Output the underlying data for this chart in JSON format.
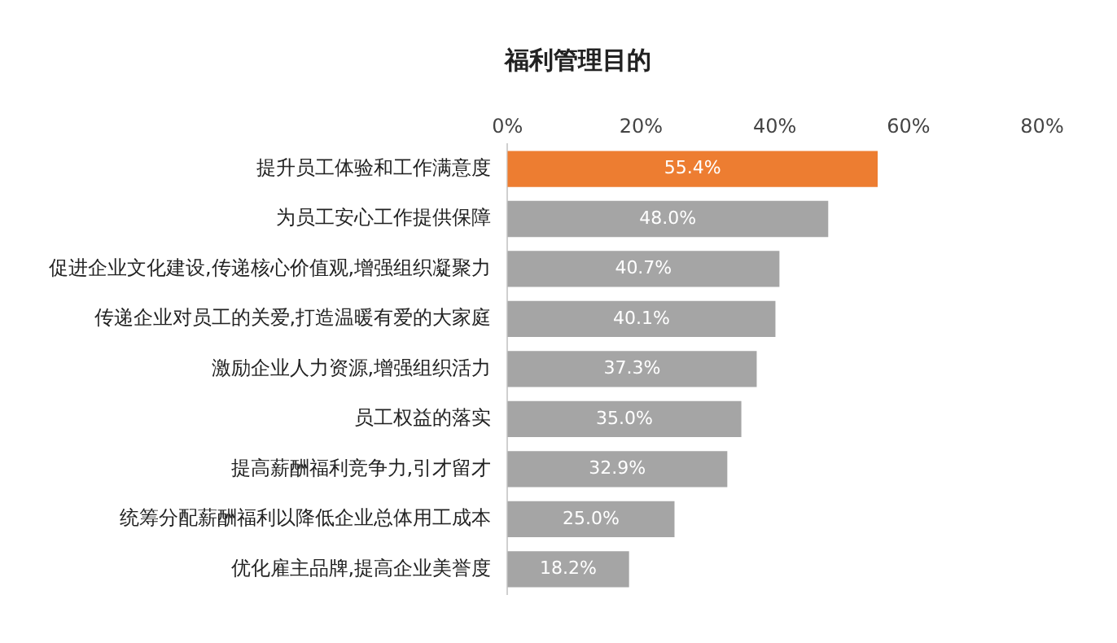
{
  "chart_data": {
    "type": "bar",
    "orientation": "horizontal",
    "title": "福利管理目的",
    "categories": [
      "提升员工体验和工作满意度",
      "为员工安心工作提供保障",
      "促进企业文化建设,传递核心价值观,增强组织凝聚力",
      "传递企业对员工的关爱,打造温暖有爱的大家庭",
      "激励企业人力资源,增强组织活力",
      "员工权益的落实",
      "提高薪酬福利竞争力,引才留才",
      "统筹分配薪酬福利以降低企业总体用工成本",
      "优化雇主品牌,提高企业美誉度"
    ],
    "values": [
      55.4,
      48.0,
      40.7,
      40.1,
      37.3,
      35.0,
      32.9,
      25.0,
      18.2
    ],
    "value_labels": [
      "55.4%",
      "48.0%",
      "40.7%",
      "40.1%",
      "37.3%",
      "35.0%",
      "32.9%",
      "25.0%",
      "18.2%"
    ],
    "colors": [
      "#ed7d31",
      "#a5a5a5",
      "#a5a5a5",
      "#a5a5a5",
      "#a5a5a5",
      "#a5a5a5",
      "#a5a5a5",
      "#a5a5a5",
      "#a5a5a5"
    ],
    "xlim": [
      0,
      80
    ],
    "xticks": [
      {
        "value": 0,
        "label": "0%"
      },
      {
        "value": 20,
        "label": "20%"
      },
      {
        "value": 40,
        "label": "40%"
      },
      {
        "value": 60,
        "label": "60%"
      },
      {
        "value": 80,
        "label": "80%"
      }
    ],
    "grid": false,
    "legend": false
  }
}
